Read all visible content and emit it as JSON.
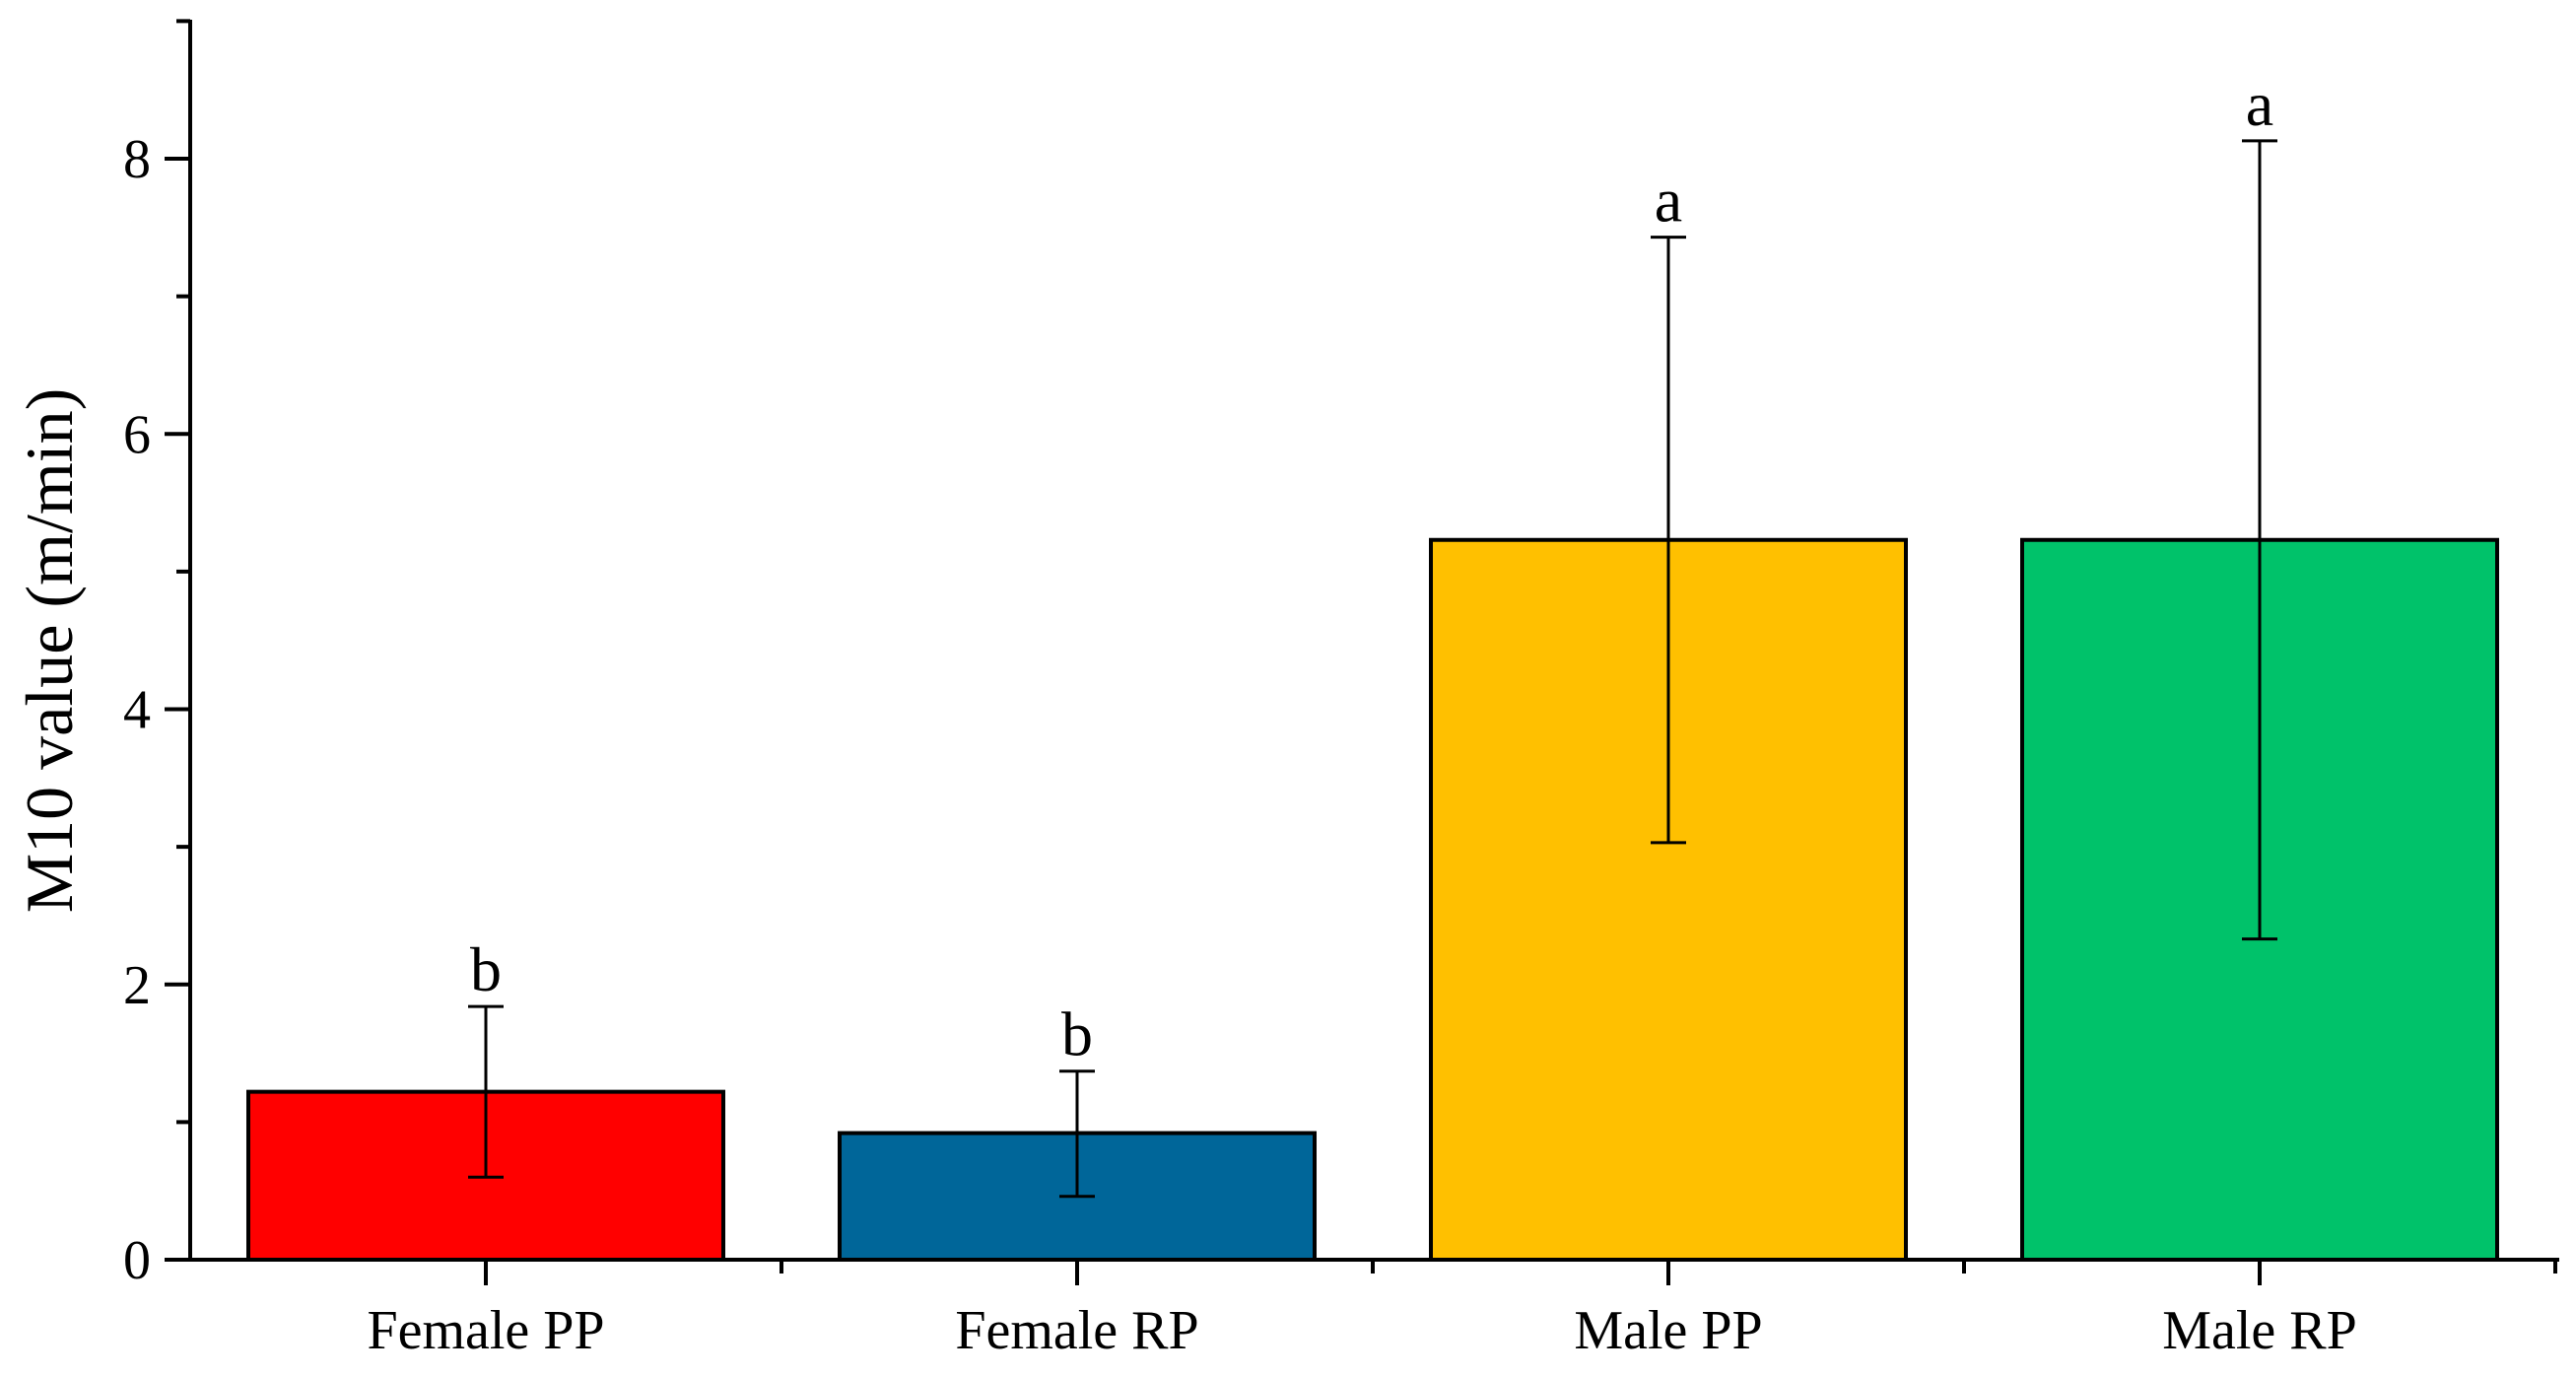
{
  "chart_data": {
    "type": "bar",
    "title": "",
    "xlabel": "",
    "ylabel": "M10 value (m/min)",
    "ylim": [
      0,
      9
    ],
    "yticks": [
      0,
      2,
      4,
      6,
      8
    ],
    "grid": false,
    "categories": [
      "Female PP",
      "Female RP",
      "Male PP",
      "Male RP"
    ],
    "values": [
      1.22,
      0.92,
      5.23,
      5.23
    ],
    "error_low": [
      0.62,
      0.46,
      2.2,
      2.9
    ],
    "error_high": [
      0.62,
      0.45,
      2.2,
      2.9
    ],
    "annotations": [
      "b",
      "b",
      "a",
      "a"
    ],
    "colors": [
      "#ff0000",
      "#006699",
      "#ffc000",
      "#00c26a"
    ]
  }
}
